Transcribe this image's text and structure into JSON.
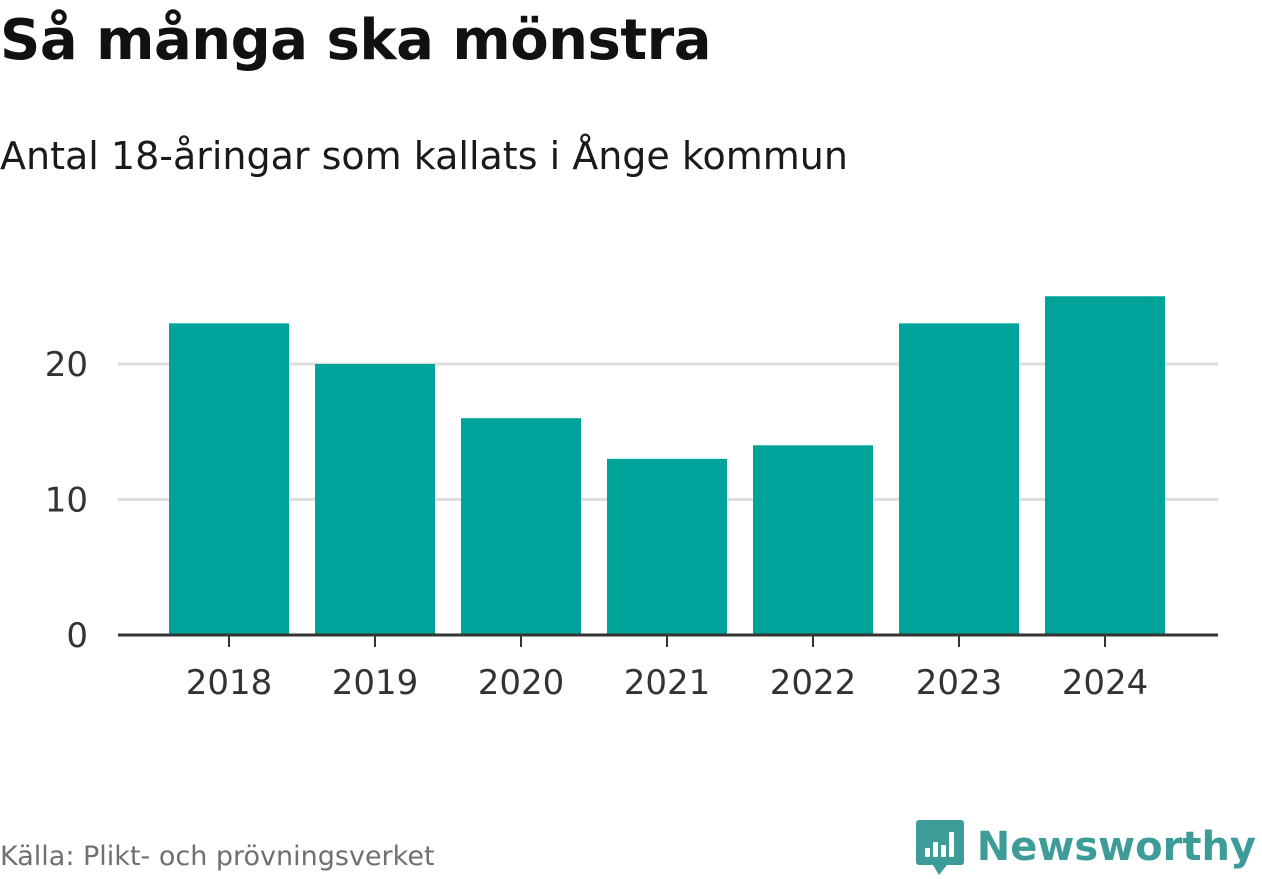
{
  "header": {
    "title": "Så många ska mönstra",
    "subtitle": "Antal 18-åringar som kallats i Ånge kommun"
  },
  "footer": {
    "source": "Källa: Plikt- och prövningsverket",
    "brand": "Newsworthy",
    "brand_color": "#3d9c97"
  },
  "chart_data": {
    "type": "bar",
    "categories": [
      "2018",
      "2019",
      "2020",
      "2021",
      "2022",
      "2023",
      "2024"
    ],
    "values": [
      23,
      20,
      16,
      13,
      14,
      23,
      25
    ],
    "yticks": [
      0,
      10,
      20
    ],
    "ylim": [
      0,
      27
    ],
    "grid": true,
    "bar_color": "#00a39a"
  }
}
